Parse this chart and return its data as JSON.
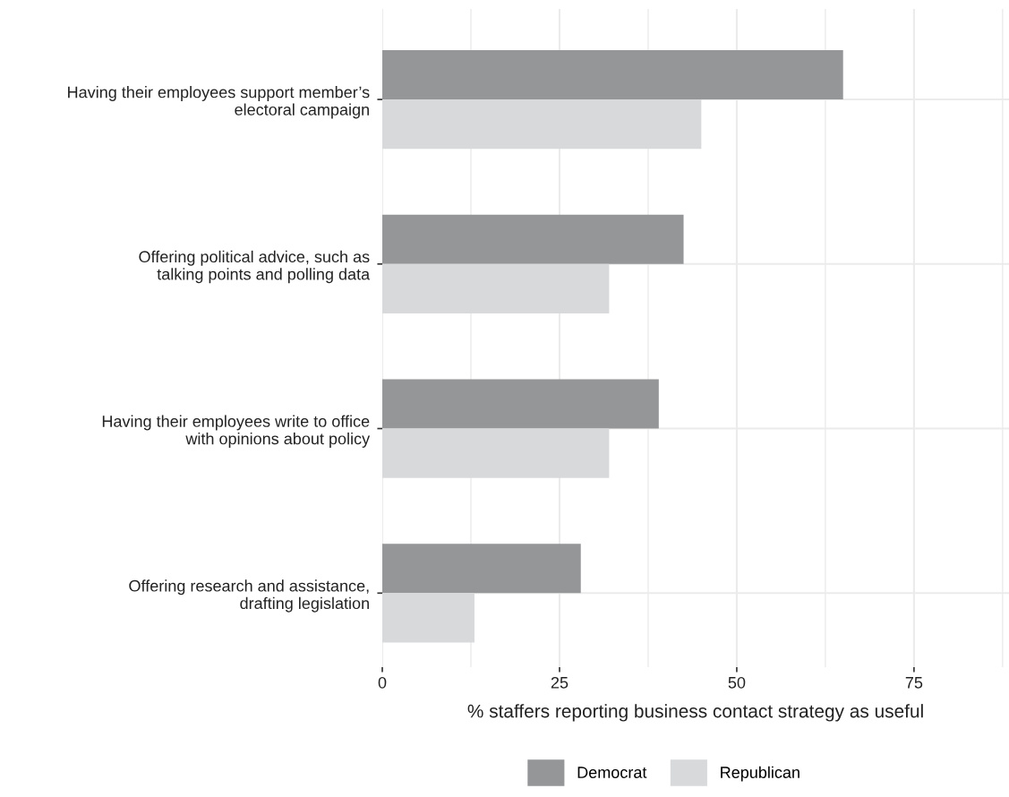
{
  "chart_data": {
    "type": "bar",
    "orientation": "horizontal",
    "categories": [
      "Having their employees support member’s electoral campaign",
      "Offering political advice, such as talking points and polling data",
      "Having their employees write to office with opinions about policy",
      "Offering research and assistance, drafting legislation"
    ],
    "series": [
      {
        "name": "Democrat",
        "color": "#959698",
        "values": [
          65,
          42.5,
          39,
          28
        ]
      },
      {
        "name": "Republican",
        "color": "#d8d9db",
        "values": [
          45,
          32,
          32,
          13
        ]
      }
    ],
    "xlabel": "% staffers reporting business contact strategy as useful",
    "xlim": [
      0,
      88.4
    ],
    "xticks": [
      0,
      25,
      50,
      75
    ],
    "grid": true,
    "legend": "bottom"
  }
}
